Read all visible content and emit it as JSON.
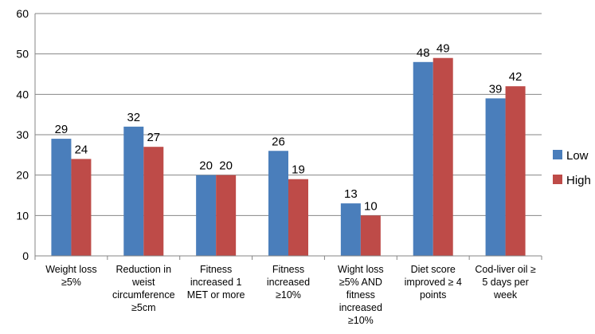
{
  "chart_data": {
    "type": "bar",
    "title": "",
    "xlabel": "",
    "ylabel": "",
    "ylim": [
      0,
      60
    ],
    "yticks": [
      0,
      10,
      20,
      30,
      40,
      50,
      60
    ],
    "grid": "horizontal",
    "legend_position": "right",
    "categories": [
      [
        "Weight loss",
        "≥5%"
      ],
      [
        "Reduction in",
        "weist",
        "circumference",
        "≥5cm"
      ],
      [
        "Fitness",
        "increased 1",
        "MET or more"
      ],
      [
        "Fitness",
        "increased",
        "≥10%"
      ],
      [
        "Wight loss",
        "≥5% AND",
        "fitness",
        "increased",
        "≥10%"
      ],
      [
        "Diet score",
        "improved ≥ 4",
        "points"
      ],
      [
        "Cod-liver oil ≥",
        "5 days per",
        "week"
      ]
    ],
    "series": [
      {
        "name": "Low",
        "color": "#4a7ebb",
        "values": [
          29,
          32,
          20,
          26,
          13,
          48,
          39
        ]
      },
      {
        "name": "High",
        "color": "#be4b48",
        "values": [
          24,
          27,
          20,
          19,
          10,
          49,
          42
        ]
      }
    ]
  }
}
